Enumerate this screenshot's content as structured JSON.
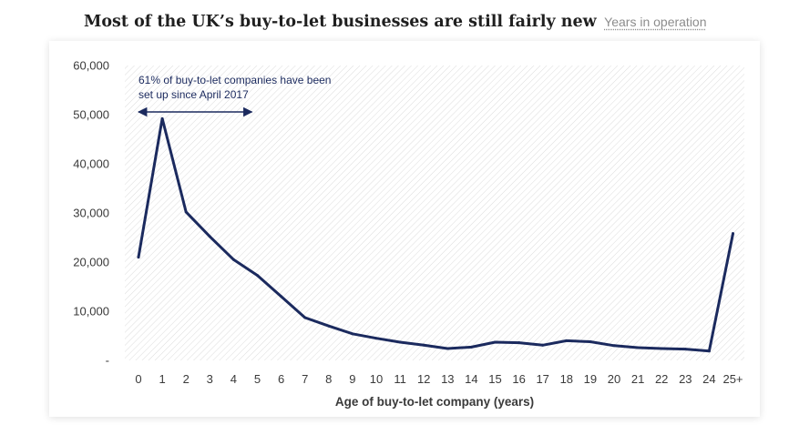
{
  "header": {
    "title": "Most of the UK’s buy-to-let businesses are still fairly new",
    "subtitle": "Years in operation"
  },
  "chart_data": {
    "type": "line",
    "xlabel": "Age of buy-to-let company (years)",
    "ylabel": "",
    "ylim": [
      0,
      60000
    ],
    "y_ticks": [
      0,
      10000,
      20000,
      30000,
      40000,
      50000,
      60000
    ],
    "y_tick_labels": [
      "-",
      "10,000",
      "20,000",
      "30,000",
      "40,000",
      "50,000",
      "60,000"
    ],
    "grid": "hatched plot background",
    "categories": [
      "0",
      "1",
      "2",
      "3",
      "4",
      "5",
      "6",
      "7",
      "8",
      "9",
      "10",
      "11",
      "12",
      "13",
      "14",
      "15",
      "16",
      "17",
      "18",
      "19",
      "20",
      "21",
      "22",
      "23",
      "24",
      "25+"
    ],
    "series": [
      {
        "color": "#1b2a5e",
        "values": [
          21000,
          49200,
          30200,
          25200,
          20500,
          17300,
          13000,
          8700,
          7000,
          5400,
          4500,
          3700,
          3100,
          2400,
          2700,
          3700,
          3600,
          3100,
          4000,
          3800,
          3000,
          2600,
          2400,
          2300,
          1900,
          25800
        ]
      }
    ],
    "annotation": {
      "lines": [
        "61% of buy-to-let companies have been",
        "set up since April 2017"
      ],
      "arrow_from": "0",
      "arrow_to": "5"
    }
  }
}
